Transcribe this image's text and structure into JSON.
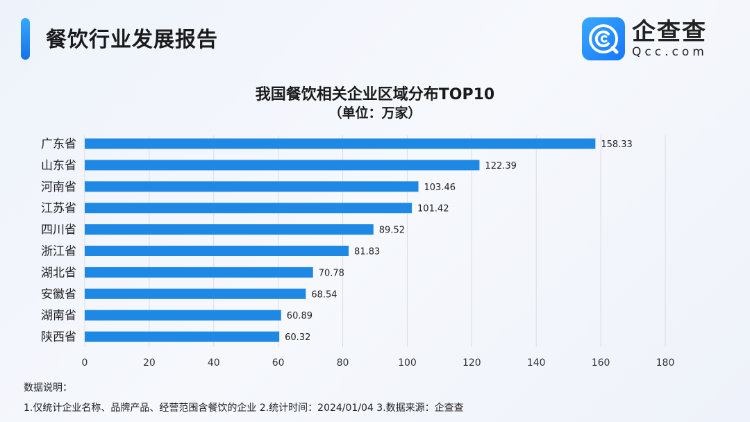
{
  "header": {
    "title": "餐饮行业发展报告"
  },
  "logo": {
    "name_cn": "企查查",
    "name_en": "Qcc.com",
    "icon": "magnifier-c-icon"
  },
  "colors": {
    "bar": "#1e88e5",
    "accent": "#1f86f0",
    "grid": "#dddddd"
  },
  "chart_data": {
    "type": "bar",
    "orientation": "horizontal",
    "title": "我国餐饮相关企业区域分布TOP10",
    "subtitle": "（单位：万家）",
    "categories": [
      "广东省",
      "山东省",
      "河南省",
      "江苏省",
      "四川省",
      "浙江省",
      "湖北省",
      "安徽省",
      "湖南省",
      "陕西省"
    ],
    "values": [
      158.33,
      122.39,
      103.46,
      101.42,
      89.52,
      81.83,
      70.78,
      68.54,
      60.89,
      60.32
    ],
    "value_labels": [
      "158.33",
      "122.39",
      "103.46",
      "101.42",
      "89.52",
      "81.83",
      "70.78",
      "68.54",
      "60.89",
      "60.32"
    ],
    "xlim": [
      0,
      180
    ],
    "xticks": [
      "0",
      "20",
      "40",
      "60",
      "80",
      "100",
      "120",
      "140",
      "160",
      "180"
    ],
    "grid": true,
    "xlabel": "",
    "ylabel": ""
  },
  "notes": {
    "heading": "数据说明：",
    "body": "1.仅统计企业名称、品牌产品、经营范围含餐饮的企业  2.统计时间：2024/01/04   3.数据来源：企查查"
  }
}
